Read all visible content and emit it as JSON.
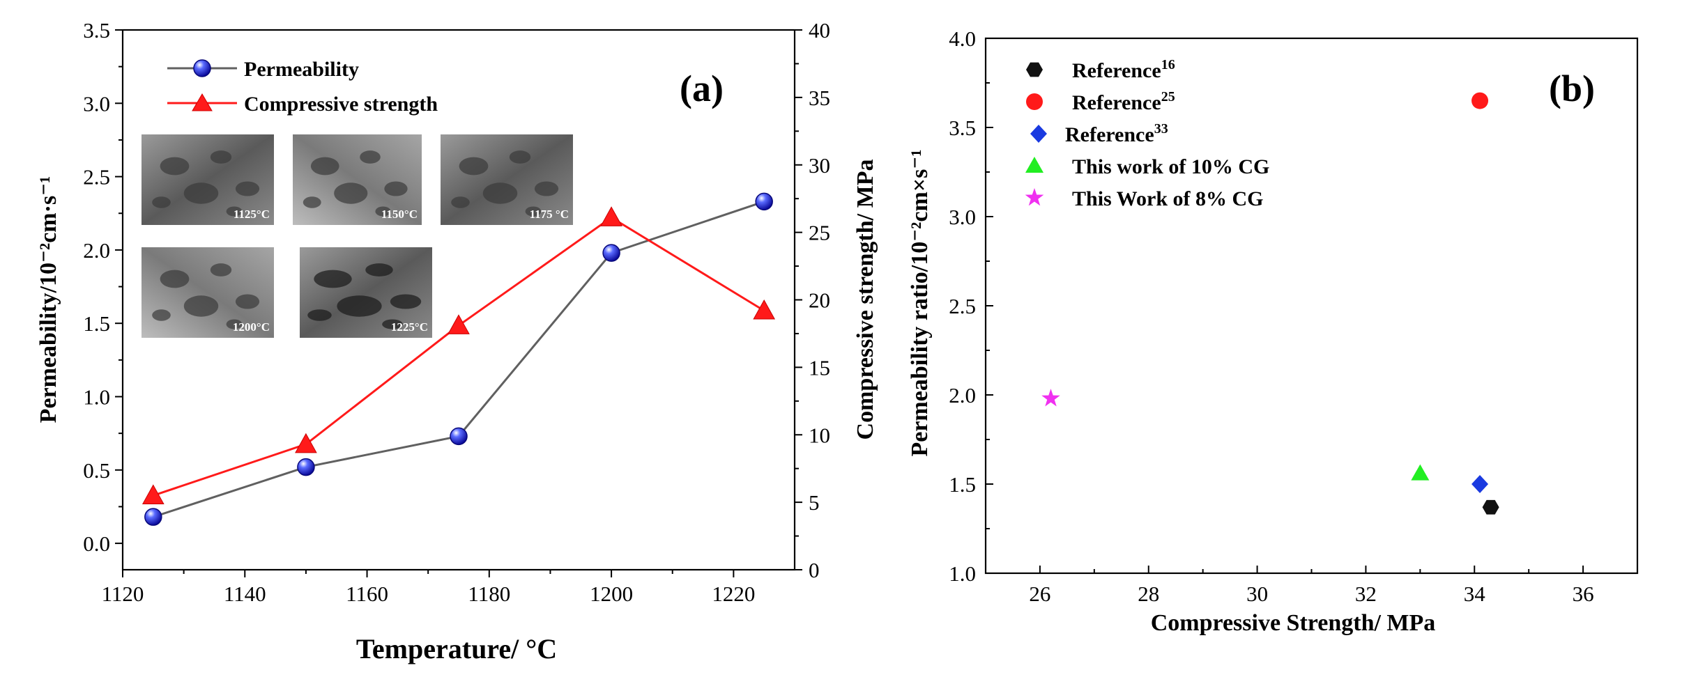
{
  "colors": {
    "perm_line": "#606060",
    "perm_marker": "#1a1ad8",
    "strength": "#ff1a1a",
    "ref16": "#111111",
    "ref25": "#ff1a1a",
    "ref33": "#1a3ae0",
    "cg10": "#22ee22",
    "cg8": "#f030f0"
  },
  "chart_data": [
    {
      "type": "line",
      "panel_label": "(a)",
      "xlabel": "Temperature/ °C",
      "ylabel_left": "Permeability/10⁻²cm·s⁻¹",
      "ylabel_right": "Compressive strength/ MPa",
      "xlim": [
        1120,
        1230
      ],
      "ylim_left": [
        -0.18,
        3.5
      ],
      "ylim_right": [
        0,
        40
      ],
      "x_ticks": [
        1120,
        1140,
        1160,
        1180,
        1200,
        1220
      ],
      "y_left_ticks": [
        0.0,
        0.5,
        1.0,
        1.5,
        2.0,
        2.5,
        3.0,
        3.5
      ],
      "y_right_ticks": [
        0,
        5,
        10,
        15,
        20,
        25,
        30,
        35,
        40
      ],
      "x_tick_labels": [
        "1120",
        "1140",
        "1160",
        "1180",
        "1200",
        "1220"
      ],
      "y_left_tick_labels": [
        "0.0",
        "0.5",
        "1.0",
        "1.5",
        "2.0",
        "2.5",
        "3.0",
        "3.5"
      ],
      "y_right_tick_labels": [
        "0",
        "5",
        "10",
        "15",
        "20",
        "25",
        "30",
        "35",
        "40"
      ],
      "legend_position": "top-left",
      "series": [
        {
          "name": "Permeability",
          "axis": "left",
          "marker": "sphere",
          "x": [
            1125,
            1150,
            1175,
            1200,
            1225
          ],
          "values": [
            0.18,
            0.52,
            0.73,
            1.98,
            2.33
          ]
        },
        {
          "name": "Compressive strength",
          "axis": "right",
          "marker": "triangle",
          "x": [
            1125,
            1150,
            1175,
            1200,
            1225
          ],
          "values": [
            5.5,
            9.3,
            18.1,
            26.1,
            19.2
          ]
        }
      ],
      "insets": [
        {
          "label": "1125°C"
        },
        {
          "label": "1150°C"
        },
        {
          "label": "1175 °C"
        },
        {
          "label": "1200°C"
        },
        {
          "label": "1225°C"
        }
      ]
    },
    {
      "type": "scatter",
      "panel_label": "(b)",
      "xlabel": "Compressive Strength/ MPa",
      "ylabel": "Permeability ratio/10⁻²cm×s⁻¹",
      "xlim": [
        25,
        37
      ],
      "ylim": [
        1.0,
        4.0
      ],
      "x_ticks": [
        26,
        28,
        30,
        32,
        34,
        36
      ],
      "y_ticks": [
        1.0,
        1.5,
        2.0,
        2.5,
        3.0,
        3.5,
        4.0
      ],
      "x_tick_labels": [
        "26",
        "28",
        "30",
        "32",
        "34",
        "36"
      ],
      "y_tick_labels": [
        "1.0",
        "1.5",
        "2.0",
        "2.5",
        "3.0",
        "3.5",
        "4.0"
      ],
      "legend_position": "top-left",
      "series": [
        {
          "name": "Reference",
          "sup": "16",
          "marker": "hexagon",
          "x": [
            34.3
          ],
          "values": [
            1.37
          ]
        },
        {
          "name": "Reference",
          "sup": "25",
          "marker": "circle",
          "x": [
            34.1
          ],
          "values": [
            3.65
          ]
        },
        {
          "name": "Reference",
          "sup": "33",
          "marker": "diamond",
          "x": [
            34.1
          ],
          "values": [
            1.5
          ]
        },
        {
          "name": "This work of 10% CG",
          "sup": "",
          "marker": "triangle",
          "x": [
            33.0
          ],
          "values": [
            1.56
          ]
        },
        {
          "name": "This Work of 8% CG",
          "sup": "",
          "marker": "star",
          "x": [
            26.2
          ],
          "values": [
            1.98
          ]
        }
      ]
    }
  ]
}
